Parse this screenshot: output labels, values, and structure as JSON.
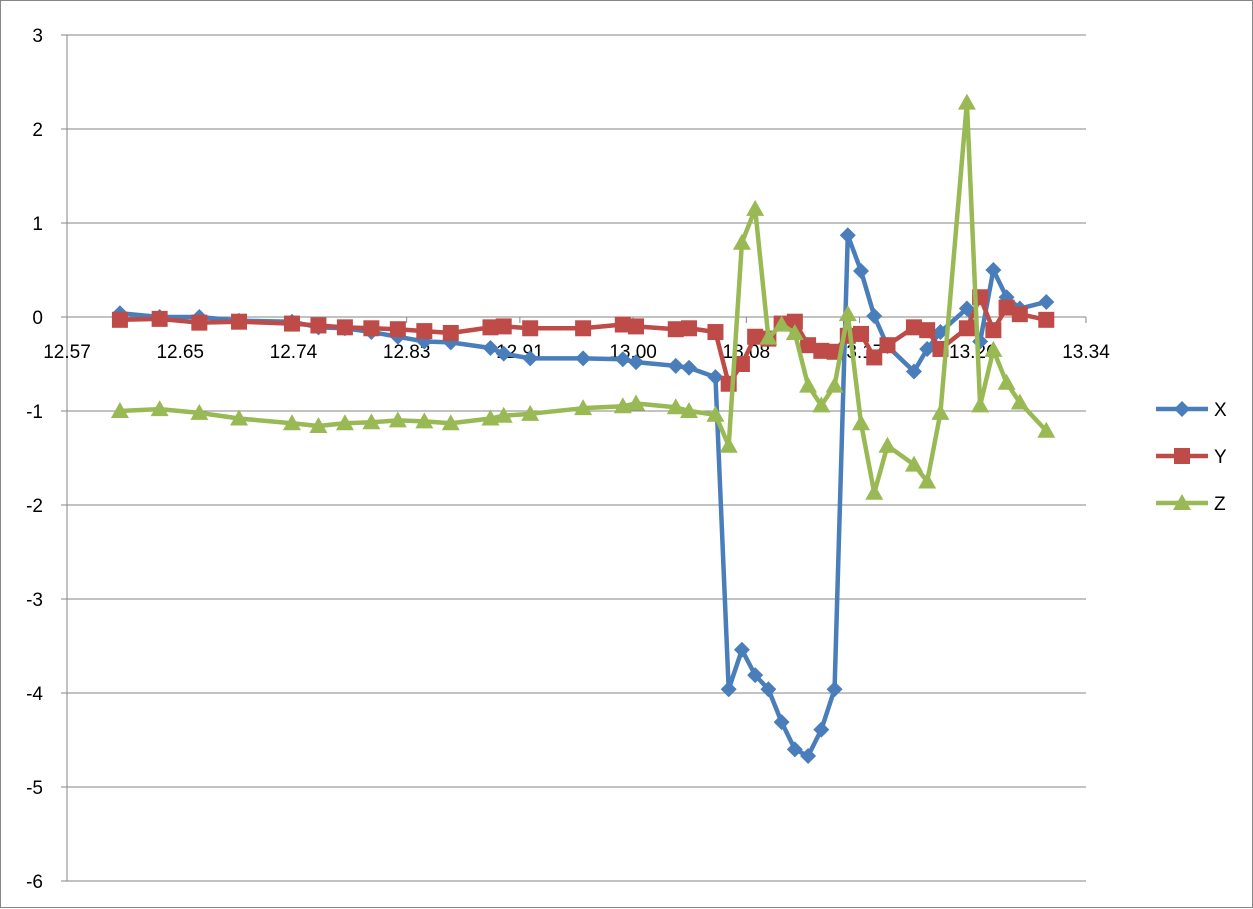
{
  "chart_data": {
    "type": "scatter",
    "title": "",
    "xlabel": "",
    "ylabel": "",
    "xlim": [
      12.57,
      13.34
    ],
    "ylim": [
      -6,
      3
    ],
    "x_ticks": [
      "12.57",
      "12.65",
      "12.74",
      "12.83",
      "12.91",
      "13.00",
      "13.08",
      "13.17",
      "13.26",
      "13.34"
    ],
    "y_ticks": [
      "3",
      "2",
      "1",
      "0",
      "-1",
      "-2",
      "-3",
      "-4",
      "-5",
      "-6"
    ],
    "grid": "horizontal",
    "legend_position": "right",
    "series": [
      {
        "name": "X",
        "color": "#4A7EBB",
        "marker": "diamond",
        "points": [
          [
            12.61,
            0.04
          ],
          [
            12.64,
            0.0
          ],
          [
            12.67,
            0.0
          ],
          [
            12.7,
            -0.04
          ],
          [
            12.74,
            -0.05
          ],
          [
            12.76,
            -0.11
          ],
          [
            12.78,
            -0.12
          ],
          [
            12.8,
            -0.16
          ],
          [
            12.82,
            -0.21
          ],
          [
            12.84,
            -0.26
          ],
          [
            12.86,
            -0.27
          ],
          [
            12.89,
            -0.33
          ],
          [
            12.9,
            -0.39
          ],
          [
            12.92,
            -0.44
          ],
          [
            12.96,
            -0.44
          ],
          [
            12.99,
            -0.45
          ],
          [
            13.0,
            -0.48
          ],
          [
            13.03,
            -0.52
          ],
          [
            13.04,
            -0.54
          ],
          [
            13.06,
            -0.64
          ],
          [
            13.07,
            -3.96
          ],
          [
            13.08,
            -3.54
          ],
          [
            13.09,
            -3.81
          ],
          [
            13.1,
            -3.96
          ],
          [
            13.11,
            -4.31
          ],
          [
            13.12,
            -4.6
          ],
          [
            13.13,
            -4.67
          ],
          [
            13.14,
            -4.39
          ],
          [
            13.15,
            -3.96
          ],
          [
            13.16,
            0.87
          ],
          [
            13.17,
            0.49
          ],
          [
            13.18,
            0.01
          ],
          [
            13.19,
            -0.31
          ],
          [
            13.21,
            -0.58
          ],
          [
            13.22,
            -0.34
          ],
          [
            13.23,
            -0.16
          ],
          [
            13.25,
            0.09
          ],
          [
            13.26,
            -0.26
          ],
          [
            13.27,
            0.5
          ],
          [
            13.28,
            0.21
          ],
          [
            13.29,
            0.09
          ],
          [
            13.31,
            0.16
          ]
        ]
      },
      {
        "name": "Y",
        "color": "#BE4B48",
        "marker": "square",
        "points": [
          [
            12.61,
            -0.03
          ],
          [
            12.64,
            -0.02
          ],
          [
            12.67,
            -0.06
          ],
          [
            12.7,
            -0.05
          ],
          [
            12.74,
            -0.07
          ],
          [
            12.76,
            -0.09
          ],
          [
            12.78,
            -0.11
          ],
          [
            12.8,
            -0.12
          ],
          [
            12.82,
            -0.13
          ],
          [
            12.84,
            -0.15
          ],
          [
            12.86,
            -0.17
          ],
          [
            12.89,
            -0.11
          ],
          [
            12.9,
            -0.1
          ],
          [
            12.92,
            -0.12
          ],
          [
            12.96,
            -0.12
          ],
          [
            12.99,
            -0.08
          ],
          [
            13.0,
            -0.1
          ],
          [
            13.03,
            -0.13
          ],
          [
            13.04,
            -0.12
          ],
          [
            13.06,
            -0.16
          ],
          [
            13.07,
            -0.71
          ],
          [
            13.08,
            -0.5
          ],
          [
            13.09,
            -0.21
          ],
          [
            13.1,
            -0.23
          ],
          [
            13.11,
            -0.07
          ],
          [
            13.12,
            -0.05
          ],
          [
            13.13,
            -0.3
          ],
          [
            13.14,
            -0.36
          ],
          [
            13.15,
            -0.37
          ],
          [
            13.16,
            -0.2
          ],
          [
            13.17,
            -0.18
          ],
          [
            13.18,
            -0.43
          ],
          [
            13.19,
            -0.3
          ],
          [
            13.21,
            -0.11
          ],
          [
            13.22,
            -0.14
          ],
          [
            13.23,
            -0.34
          ],
          [
            13.25,
            -0.12
          ],
          [
            13.26,
            0.21
          ],
          [
            13.27,
            -0.14
          ],
          [
            13.28,
            0.1
          ],
          [
            13.29,
            0.03
          ],
          [
            13.31,
            -0.03
          ]
        ]
      },
      {
        "name": "Z",
        "color": "#98B954",
        "marker": "triangle",
        "points": [
          [
            12.61,
            -1.0
          ],
          [
            12.64,
            -0.98
          ],
          [
            12.67,
            -1.02
          ],
          [
            12.7,
            -1.08
          ],
          [
            12.74,
            -1.13
          ],
          [
            12.76,
            -1.16
          ],
          [
            12.78,
            -1.13
          ],
          [
            12.8,
            -1.12
          ],
          [
            12.82,
            -1.1
          ],
          [
            12.84,
            -1.11
          ],
          [
            12.86,
            -1.13
          ],
          [
            12.89,
            -1.08
          ],
          [
            12.9,
            -1.05
          ],
          [
            12.92,
            -1.03
          ],
          [
            12.96,
            -0.97
          ],
          [
            12.99,
            -0.95
          ],
          [
            13.0,
            -0.92
          ],
          [
            13.03,
            -0.96
          ],
          [
            13.04,
            -1.0
          ],
          [
            13.06,
            -1.04
          ],
          [
            13.07,
            -1.37
          ],
          [
            13.08,
            0.79
          ],
          [
            13.09,
            1.15
          ],
          [
            13.1,
            -0.22
          ],
          [
            13.11,
            -0.08
          ],
          [
            13.12,
            -0.17
          ],
          [
            13.13,
            -0.73
          ],
          [
            13.14,
            -0.94
          ],
          [
            13.15,
            -0.73
          ],
          [
            13.16,
            0.03
          ],
          [
            13.17,
            -1.13
          ],
          [
            13.18,
            -1.87
          ],
          [
            13.19,
            -1.37
          ],
          [
            13.21,
            -1.57
          ],
          [
            13.22,
            -1.75
          ],
          [
            13.23,
            -1.02
          ],
          [
            13.25,
            2.28
          ],
          [
            13.26,
            -0.94
          ],
          [
            13.27,
            -0.35
          ],
          [
            13.28,
            -0.7
          ],
          [
            13.29,
            -0.91
          ],
          [
            13.31,
            -1.21
          ]
        ]
      }
    ]
  }
}
